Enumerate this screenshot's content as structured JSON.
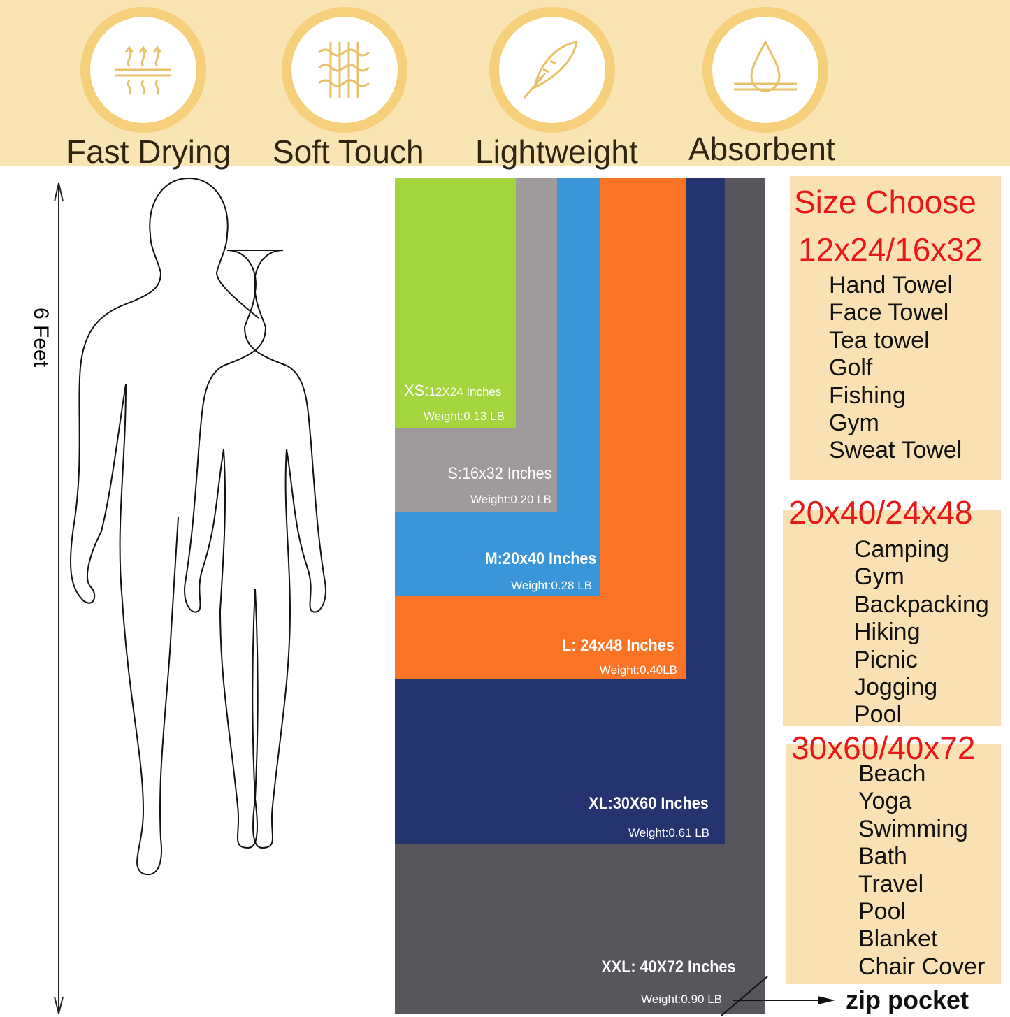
{
  "features": [
    {
      "label": "Fast Drying",
      "icon": "heat-waves-icon"
    },
    {
      "label": "Soft Touch",
      "icon": "fabric-weave-icon"
    },
    {
      "label": "Lightweight",
      "icon": "feather-icon"
    },
    {
      "label": "Absorbent",
      "icon": "water-drop-icon"
    }
  ],
  "height_label": "6 Feet",
  "sizes": [
    {
      "label": "XXL: 40X72 Inches",
      "weight": "Weight:0.90 LB",
      "color": "#58555c"
    },
    {
      "label": "XL:30X60 Inches",
      "weight": "Weight:0.61 LB",
      "color": "#25336e"
    },
    {
      "label": "L: 24x48 Inches",
      "weight": "Weight:0.40LB",
      "color": "#fb7426"
    },
    {
      "label": "M:20x40 Inches",
      "weight": "Weight:0.28 LB",
      "color": "#3a96d8"
    },
    {
      "label": "S:16x32 Inches",
      "weight": "Weight:0.20 LB",
      "color": "#9e9a9e"
    },
    {
      "label_prefix": "XS:",
      "label": "12X24 Inches",
      "weight": "Weight:0.13 LB",
      "color": "#a4d43e"
    }
  ],
  "size_choose": {
    "title": "Size Choose",
    "groups": [
      {
        "heading": "12x24/16x32",
        "uses": [
          "Hand Towel",
          "Face Towel",
          "Tea towel",
          "Golf",
          "Fishing",
          "Gym",
          "Sweat Towel"
        ]
      },
      {
        "heading": "20x40/24x48",
        "uses": [
          "Camping",
          "Gym",
          "Backpacking",
          "Hiking",
          "Picnic",
          "Jogging",
          "Pool"
        ]
      },
      {
        "heading": "30x60/40x72",
        "uses": [
          "Beach",
          "Yoga",
          "Swimming",
          "Bath",
          "Travel",
          "Pool",
          "Blanket",
          "Chair Cover"
        ]
      }
    ]
  },
  "zip_pocket": "zip pocket"
}
